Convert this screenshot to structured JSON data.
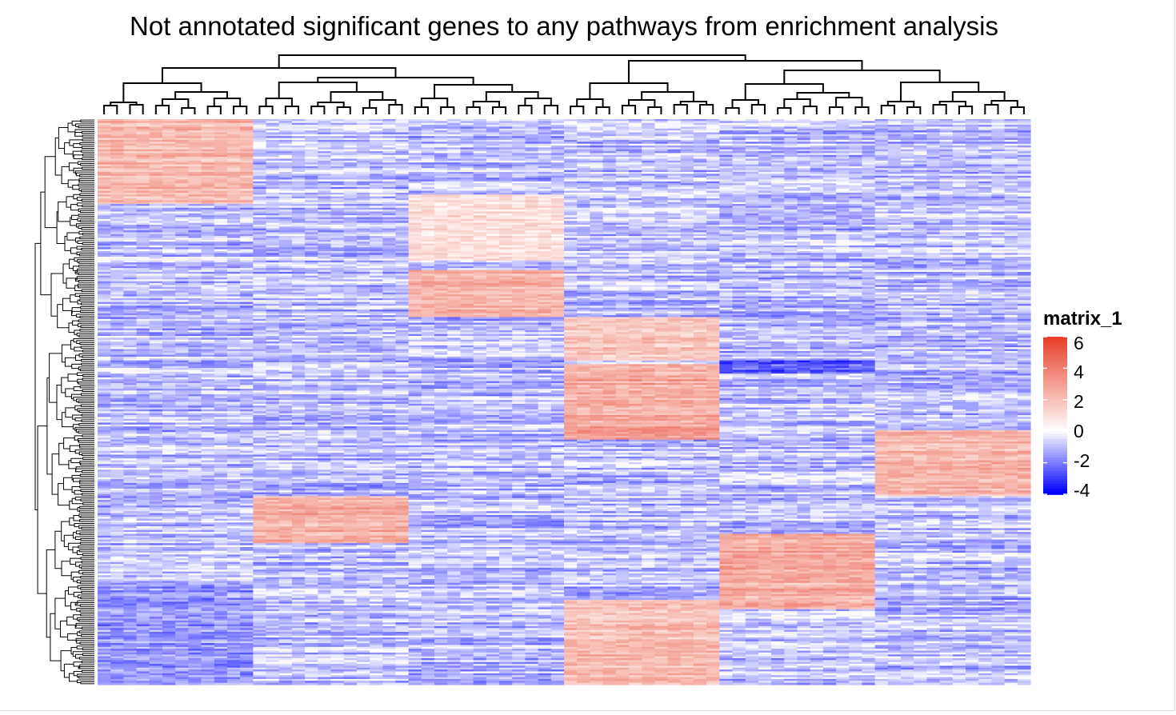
{
  "chart_data": {
    "type": "heatmap",
    "title": "Not annotated significant genes to any pathways from enrichment analysis",
    "column_count": 72,
    "row_count": 300,
    "column_clusters": 6,
    "row_clusters": [
      {
        "rows": [
          0,
          45
        ],
        "high_columns": [
          0
        ],
        "level": 2.6
      },
      {
        "rows": [
          40,
          75
        ],
        "high_columns": [
          2
        ],
        "level": 1.2
      },
      {
        "rows": [
          80,
          105
        ],
        "high_columns": [
          2
        ],
        "level": 3.0
      },
      {
        "rows": [
          105,
          128
        ],
        "high_columns": [
          3
        ],
        "level": 2.2
      },
      {
        "rows": [
          128,
          135
        ],
        "low_columns": [
          4
        ],
        "level": -3.5
      },
      {
        "rows": [
          130,
          170
        ],
        "high_columns": [
          3
        ],
        "level": 3.2
      },
      {
        "rows": [
          165,
          200
        ],
        "high_columns": [
          5
        ],
        "level": 2.6
      },
      {
        "rows": [
          200,
          225
        ],
        "high_columns": [
          1
        ],
        "level": 3.0
      },
      {
        "rows": [
          220,
          260
        ],
        "high_columns": [
          4
        ],
        "level": 3.0
      },
      {
        "rows": [
          255,
          300
        ],
        "high_columns": [
          3
        ],
        "level": 2.4
      },
      {
        "rows": [
          245,
          300
        ],
        "low_columns": [
          0
        ],
        "level": -2.0
      }
    ],
    "legend": {
      "title": "matrix_1",
      "ticks": [
        "6",
        "4",
        "2",
        "0",
        "-2",
        "-4"
      ],
      "range": [
        -4,
        6
      ],
      "colors": {
        "low": "#0000ff",
        "mid": "#ffffff",
        "high": "#e8402a"
      }
    }
  }
}
